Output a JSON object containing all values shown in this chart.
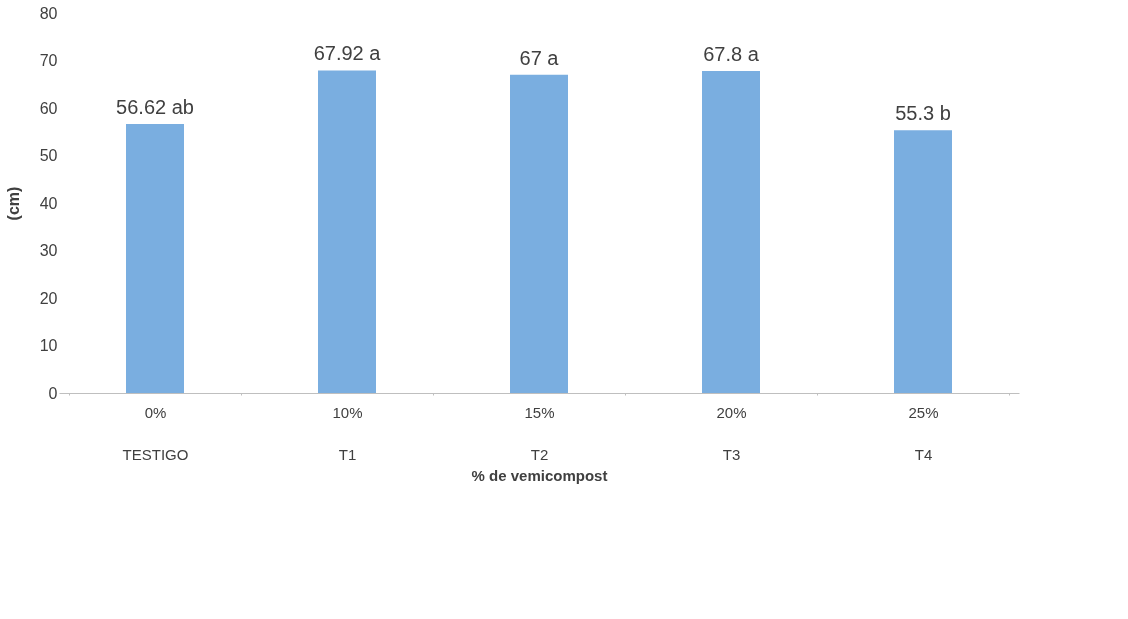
{
  "chart_data": {
    "type": "bar",
    "categories": [
      "0%\nTESTIGO",
      "10%\nT1",
      "15%\nT2",
      "20%\nT3",
      "25%\nT4"
    ],
    "values": [
      56.62,
      67.92,
      67,
      67.8,
      55.3
    ],
    "value_labels": [
      "56.62 ab",
      "67.92 a",
      "67 a",
      "67.8 a",
      "55.3 b"
    ],
    "color": "#7aaee0",
    "xlabel": "% de vemicompost",
    "ylabel": "(cm)",
    "ylim": [
      0,
      80
    ],
    "yticks": [
      0,
      10,
      20,
      30,
      40,
      50,
      60,
      70,
      80
    ],
    "grid": false
  }
}
